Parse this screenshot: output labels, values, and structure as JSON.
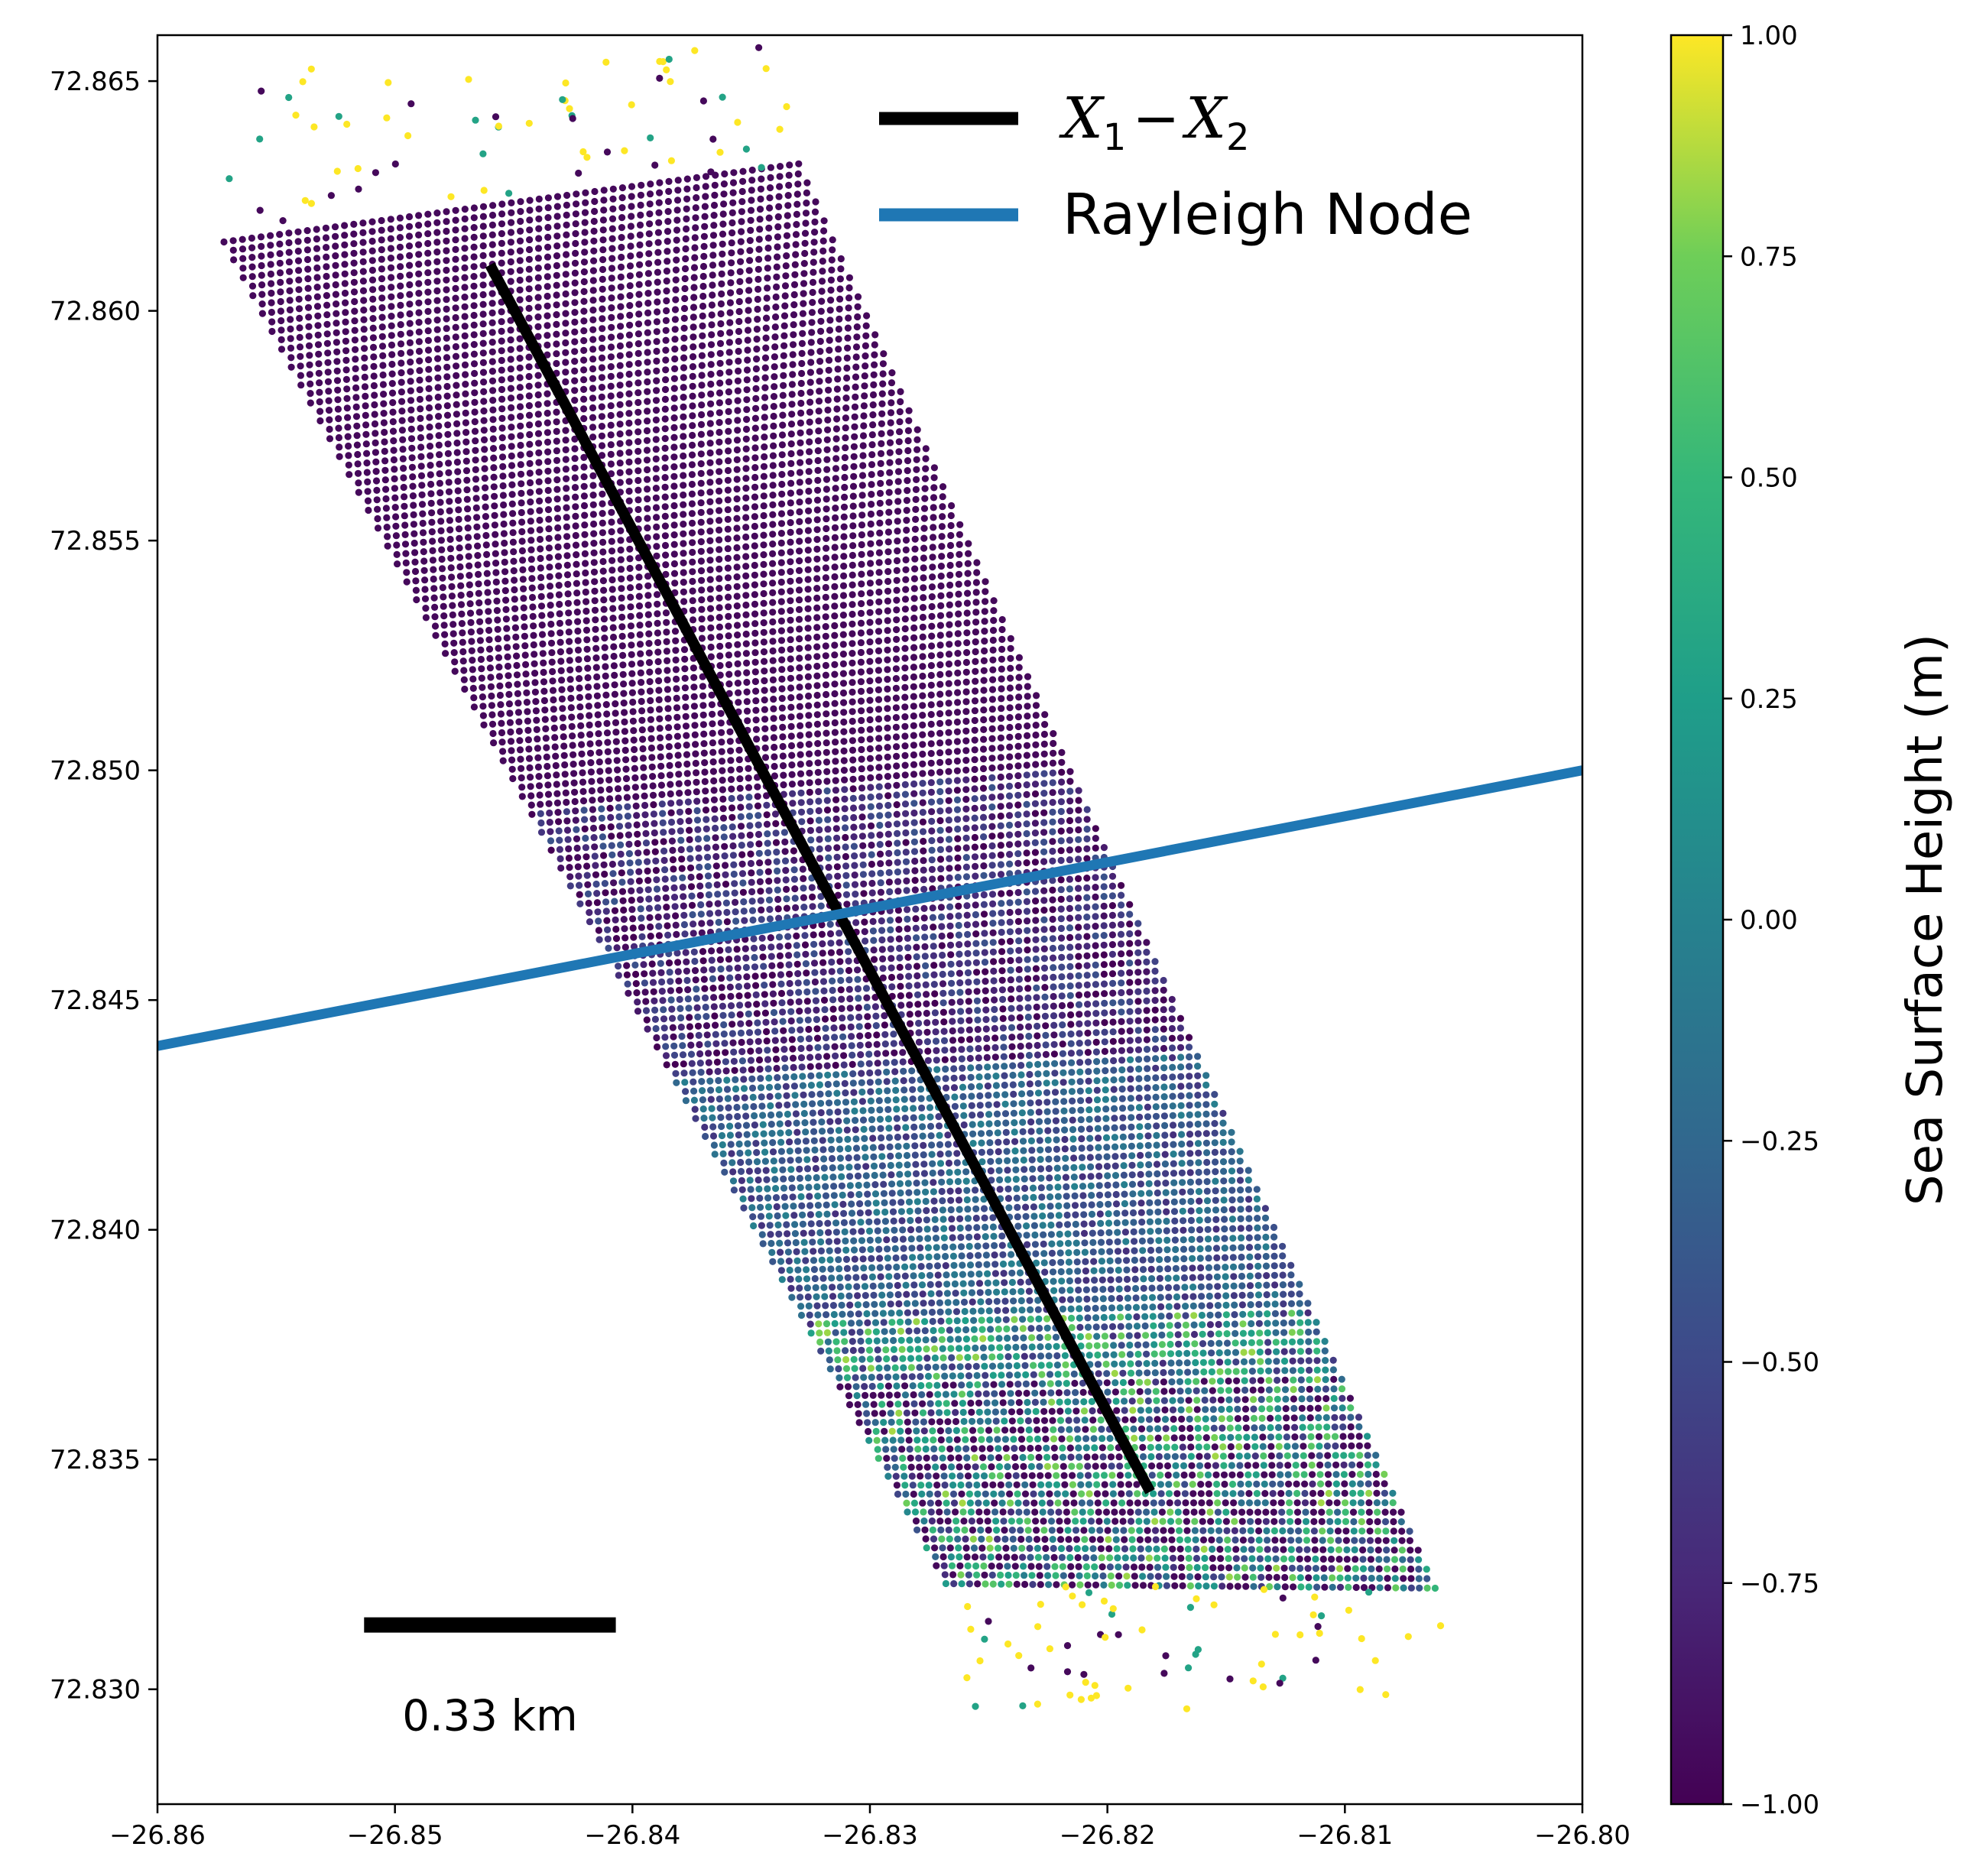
{
  "chart_data": {
    "type": "scatter",
    "title": "",
    "xlabel": "",
    "ylabel": "",
    "xlim": [
      -26.86,
      -26.8
    ],
    "ylim": [
      72.8275,
      72.866
    ],
    "x_ticks": [
      -26.86,
      -26.85,
      -26.84,
      -26.83,
      -26.82,
      -26.81,
      -26.8
    ],
    "x_tick_labels": [
      "−26.86",
      "−26.85",
      "−26.84",
      "−26.83",
      "−26.82",
      "−26.81",
      "−26.80"
    ],
    "y_ticks": [
      72.83,
      72.835,
      72.84,
      72.845,
      72.85,
      72.855,
      72.86,
      72.865
    ],
    "y_tick_labels": [
      "72.830",
      "72.835",
      "72.840",
      "72.845",
      "72.850",
      "72.855",
      "72.860",
      "72.865"
    ],
    "grid": false,
    "legend_position": "top-right",
    "scatter_swath": {
      "description_key": "sea-surface-height-points",
      "colormap": "viridis",
      "corners": {
        "top_left": [
          -26.8572,
          72.8615
        ],
        "top_right": [
          -26.833,
          72.8632
        ],
        "bottom_right": [
          -26.8062,
          72.8322
        ],
        "bottom_left": [
          -26.8268,
          72.8323
        ]
      },
      "value_zones": [
        {
          "along_track_range": [
            0.0,
            0.42
          ],
          "value": -0.95
        },
        {
          "along_track_range": [
            0.42,
            0.62
          ],
          "value": -0.75
        },
        {
          "along_track_range": [
            0.62,
            0.8
          ],
          "value": -0.35
        },
        {
          "along_track_range": [
            0.8,
            1.0
          ],
          "value": 0.05
        }
      ]
    },
    "series": [
      {
        "name": "X_1 - X_2",
        "type": "line",
        "color": "#000000",
        "x": [
          -26.846,
          -26.8182
        ],
        "y": [
          72.861,
          72.8343
        ]
      },
      {
        "name": "Rayleigh Node",
        "type": "line",
        "color": "#1f77b4",
        "x": [
          -26.86,
          -26.8
        ],
        "y": [
          72.844,
          72.85
        ]
      }
    ],
    "legend": [
      {
        "label_main": "X",
        "label_sub1": "1",
        "label_minus": "−",
        "label_sub2": "2",
        "color": "#000000"
      },
      {
        "label": "Rayleigh Node",
        "color": "#1f77b4"
      }
    ],
    "scale_bar": {
      "label": "0.33 km",
      "x": [
        -26.8513,
        -26.8407
      ],
      "y": 72.8314
    },
    "colorbar": {
      "label": "Sea Surface Height (m)",
      "colormap": "viridis",
      "range": [
        -1.0,
        1.0
      ],
      "ticks": [
        1.0,
        0.75,
        0.5,
        0.25,
        0.0,
        -0.25,
        -0.5,
        -0.75,
        -1.0
      ],
      "tick_labels": [
        "1.00",
        "0.75",
        "0.50",
        "0.25",
        "0.00",
        "−0.25",
        "−0.50",
        "−0.75",
        "−1.00"
      ]
    }
  }
}
